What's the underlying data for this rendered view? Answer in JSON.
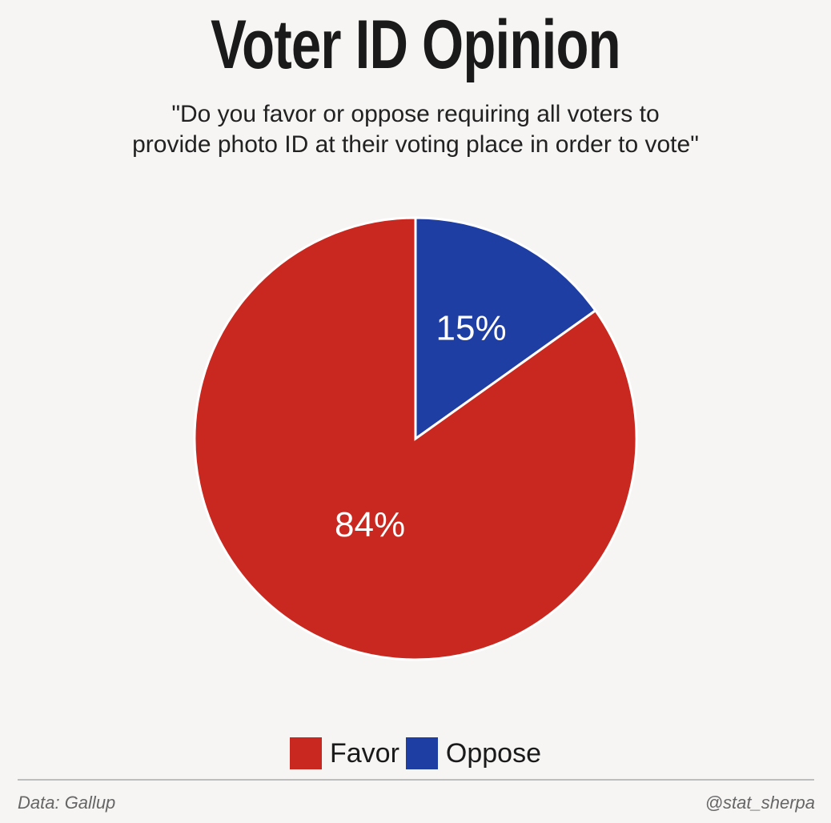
{
  "colors": {
    "favor": "#c8281f",
    "oppose": "#1f3ea3",
    "background": "#f7f5f4"
  },
  "chart_data": {
    "type": "pie",
    "title": "Voter ID Opinion",
    "subtitle": [
      "\"Do you favor or oppose requiring all voters to",
      "provide photo ID at their voting place in order to vote\""
    ],
    "slices": [
      {
        "name": "Favor",
        "value": 84,
        "label": "84%",
        "color": "#c8281f"
      },
      {
        "name": "Oppose",
        "value": 15,
        "label": "15%",
        "color": "#1f3ea3"
      }
    ],
    "legend": [
      "Favor",
      "Oppose"
    ],
    "legend_position": "bottom",
    "start": "top",
    "direction": "clockwise",
    "order": [
      "Oppose",
      "Favor"
    ]
  },
  "footer": {
    "source": "Data: Gallup",
    "credit": "@stat_sherpa"
  }
}
